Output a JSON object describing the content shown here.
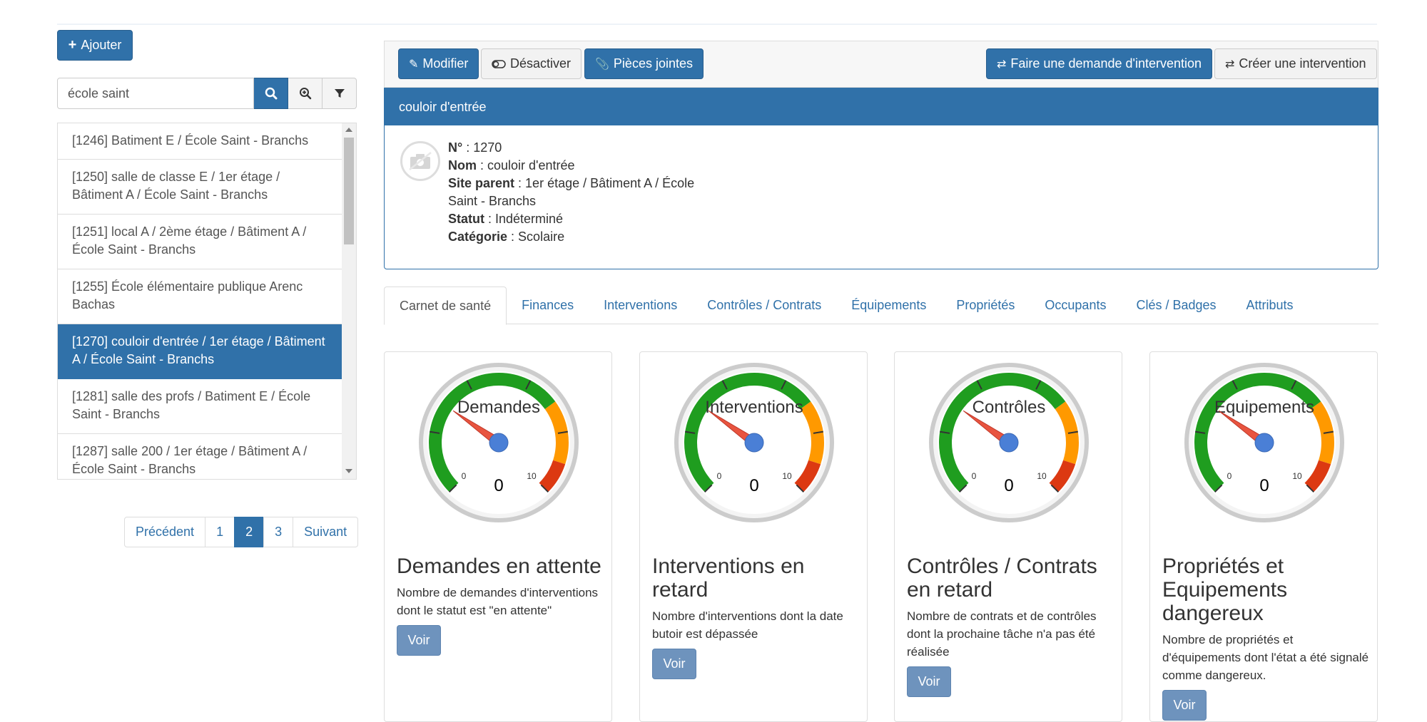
{
  "left": {
    "add_label": "Ajouter",
    "search": {
      "value": "école saint"
    },
    "items": [
      {
        "label": "[1246] Batiment E / École Saint - Branchs",
        "active": false
      },
      {
        "label": "[1250] salle de classe E / 1er étage / Bâtiment A / École Saint - Branchs",
        "active": false
      },
      {
        "label": "[1251] local A / 2ème étage / Bâtiment A / École Saint - Branchs",
        "active": false
      },
      {
        "label": "[1255] École élémentaire publique Arenc Bachas",
        "active": false
      },
      {
        "label": "[1270] couloir d'entrée / 1er étage / Bâtiment A / École Saint - Branchs",
        "active": true
      },
      {
        "label": "[1281] salle des profs / Batiment E / École Saint - Branchs",
        "active": false
      },
      {
        "label": "[1287] salle 200 / 1er étage / Bâtiment A / École Saint - Branchs",
        "active": false
      }
    ],
    "pagination": {
      "prev": "Précédent",
      "pages": [
        "1",
        "2",
        "3"
      ],
      "current": "2",
      "next": "Suivant"
    }
  },
  "toolbar": {
    "modify": "Modifier",
    "deactivate": "Désactiver",
    "attachments": "Pièces jointes",
    "request": "Faire une demande d'intervention",
    "create": "Créer une intervention"
  },
  "detail": {
    "title": "couloir d'entrée",
    "fields": [
      {
        "label": "N°",
        "value": "1270"
      },
      {
        "label": "Nom",
        "value": "couloir d'entrée"
      },
      {
        "label": "Site parent",
        "value": "1er étage / Bâtiment A / École Saint - Branchs"
      },
      {
        "label": "Statut",
        "value": "Indéterminé"
      },
      {
        "label": "Catégorie",
        "value": "Scolaire"
      }
    ]
  },
  "tabs": [
    "Carnet de santé",
    "Finances",
    "Interventions",
    "Contrôles / Contrats",
    "Équipements",
    "Propriétés",
    "Occupants",
    "Clés / Badges",
    "Attributs"
  ],
  "active_tab": "Carnet de santé",
  "cards": [
    {
      "gauge_label": "Demandes",
      "value": 0,
      "min": "0",
      "max": "10",
      "title": "Demandes en attente",
      "desc": "Nombre de demandes d'interventions dont le statut est \"en attente\"",
      "button": "Voir"
    },
    {
      "gauge_label": "Interventions",
      "value": 0,
      "min": "0",
      "max": "10",
      "title": "Interventions en retard",
      "desc": "Nombre d'interventions dont la date butoir est dépassée",
      "button": "Voir"
    },
    {
      "gauge_label": "Contrôles",
      "value": 0,
      "min": "0",
      "max": "10",
      "title": "Contrôles / Contrats en retard",
      "desc": "Nombre de contrats et de contrôles dont la prochaine tâche n'a pas été réalisée",
      "button": "Voir"
    },
    {
      "gauge_label": "Equipements",
      "value": 0,
      "min": "0",
      "max": "10",
      "title": "Propriétés et Equipements dangereux",
      "desc": "Nombre de propriétés et d'équipements dont l'état a été signalé comme dangereux.",
      "button": "Voir"
    }
  ],
  "colors": {
    "primary": "#3071a9",
    "gauge_green": "#1f9d1f",
    "gauge_orange": "#ff9900",
    "gauge_red": "#dc3912",
    "needle": "#e8543f",
    "hub": "#4a7fd6"
  }
}
